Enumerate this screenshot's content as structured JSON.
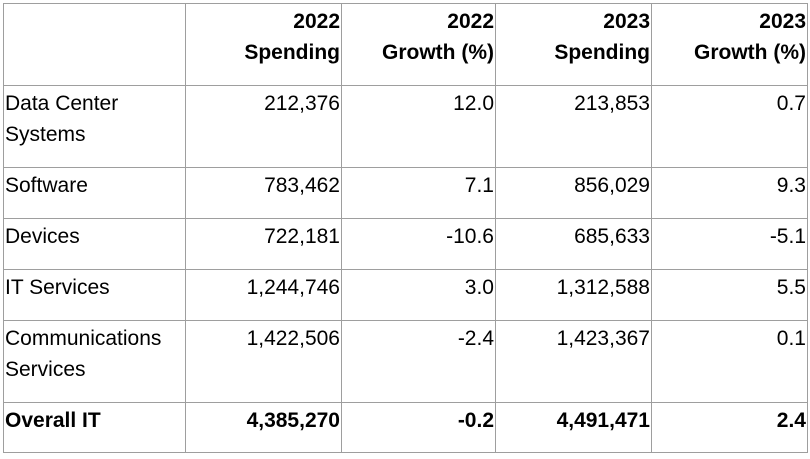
{
  "table": {
    "headers": [
      "",
      "2022 Spending",
      "2022 Growth (%)",
      "2023 Spending",
      "2023 Growth (%)"
    ],
    "header_lines": [
      [
        "",
        ""
      ],
      [
        "2022",
        "Spending"
      ],
      [
        "2022",
        "Growth (%)"
      ],
      [
        "2023",
        "Spending"
      ],
      [
        "2023",
        "Growth (%)"
      ]
    ],
    "rows": [
      {
        "label_lines": [
          "Data Center",
          "Systems"
        ],
        "values": [
          "212,376",
          "12.0",
          "213,853",
          "0.7"
        ]
      },
      {
        "label_lines": [
          "Software"
        ],
        "values": [
          "783,462",
          "7.1",
          "856,029",
          "9.3"
        ]
      },
      {
        "label_lines": [
          "Devices"
        ],
        "values": [
          "722,181",
          "-10.6",
          "685,633",
          "-5.1"
        ]
      },
      {
        "label_lines": [
          "IT Services"
        ],
        "values": [
          "1,244,746",
          "3.0",
          "1,312,588",
          "5.5"
        ]
      },
      {
        "label_lines": [
          "Communications",
          "Services"
        ],
        "values": [
          "1,422,506",
          "-2.4",
          "1,423,367",
          "0.1"
        ]
      }
    ],
    "total": {
      "label": "Overall IT",
      "values": [
        "4,385,270",
        "-0.2",
        "4,491,471",
        "2.4"
      ]
    }
  }
}
